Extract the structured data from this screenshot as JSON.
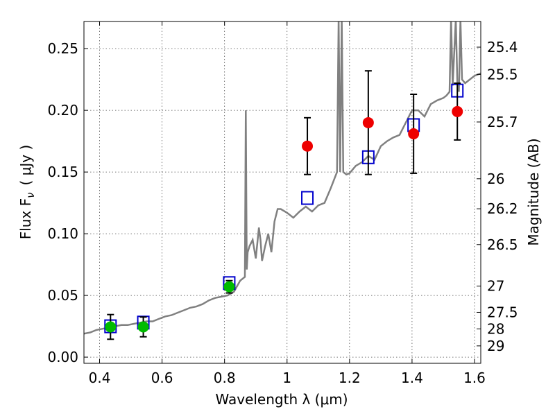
{
  "chart_data": {
    "type": "scatter",
    "xlabel": "Wavelength  λ (μm)",
    "ylabel": "Flux  F",
    "ylabel_sub": "ν",
    "ylabel_unit": "( μJy )",
    "y2label": "Magnitude (AB)",
    "xlim": [
      0.35,
      1.62
    ],
    "ylim": [
      -0.005,
      0.272
    ],
    "grid": true,
    "x_ticks": [
      0.4,
      0.6,
      0.8,
      1.0,
      1.2,
      1.4,
      1.6
    ],
    "x_tick_labels": [
      "0.4",
      "0.6",
      "0.8",
      "1",
      "1.2",
      "1.4",
      "1.6"
    ],
    "y_ticks": [
      0.0,
      0.05,
      0.1,
      0.15,
      0.2,
      0.25
    ],
    "y_tick_labels": [
      "0.00",
      "0.05",
      "0.10",
      "0.15",
      "0.20",
      "0.25"
    ],
    "mag_ticks": [
      25.4,
      25.5,
      25.7,
      26,
      26.2,
      26.5,
      27,
      27.5,
      28,
      29
    ],
    "mag_tick_labels": [
      "25.4",
      "25.5",
      "25.7",
      "26",
      "26.2",
      "26.5",
      "27",
      "27.5",
      "28",
      "29"
    ],
    "series": [
      {
        "kind": "line",
        "color": "#808080",
        "x": [
          0.35,
          0.37,
          0.39,
          0.41,
          0.43,
          0.45,
          0.47,
          0.49,
          0.51,
          0.53,
          0.55,
          0.57,
          0.59,
          0.61,
          0.63,
          0.65,
          0.67,
          0.69,
          0.71,
          0.73,
          0.75,
          0.77,
          0.79,
          0.81,
          0.83,
          0.85,
          0.865,
          0.868,
          0.871,
          0.874,
          0.88,
          0.89,
          0.9,
          0.91,
          0.915,
          0.92,
          0.93,
          0.94,
          0.95,
          0.96,
          0.97,
          0.98,
          1.0,
          1.02,
          1.04,
          1.06,
          1.08,
          1.1,
          1.12,
          1.14,
          1.16,
          1.165,
          1.17,
          1.175,
          1.18,
          1.19,
          1.2,
          1.22,
          1.24,
          1.26,
          1.28,
          1.3,
          1.32,
          1.34,
          1.36,
          1.38,
          1.4,
          1.42,
          1.44,
          1.46,
          1.48,
          1.5,
          1.51,
          1.52,
          1.525,
          1.53,
          1.54,
          1.545,
          1.55,
          1.555,
          1.56,
          1.57,
          1.58,
          1.6,
          1.62
        ],
        "y": [
          0.019,
          0.02,
          0.022,
          0.023,
          0.024,
          0.025,
          0.026,
          0.026,
          0.027,
          0.028,
          0.029,
          0.029,
          0.031,
          0.033,
          0.034,
          0.036,
          0.038,
          0.04,
          0.041,
          0.043,
          0.046,
          0.048,
          0.049,
          0.05,
          0.053,
          0.062,
          0.065,
          0.2,
          0.071,
          0.085,
          0.09,
          0.095,
          0.08,
          0.105,
          0.095,
          0.078,
          0.09,
          0.1,
          0.085,
          0.11,
          0.12,
          0.12,
          0.117,
          0.113,
          0.118,
          0.122,
          0.118,
          0.123,
          0.125,
          0.137,
          0.15,
          0.274,
          0.15,
          0.274,
          0.15,
          0.148,
          0.149,
          0.155,
          0.158,
          0.163,
          0.16,
          0.171,
          0.175,
          0.178,
          0.18,
          0.19,
          0.2,
          0.2,
          0.195,
          0.205,
          0.208,
          0.21,
          0.212,
          0.215,
          0.274,
          0.22,
          0.274,
          0.223,
          0.215,
          0.274,
          0.225,
          0.222,
          0.224,
          0.228,
          0.23
        ]
      },
      {
        "kind": "markers",
        "marker": "square",
        "color": "#0000cc",
        "x": [
          0.435,
          0.54,
          0.815,
          1.065,
          1.26,
          1.405,
          1.545
        ],
        "y": [
          0.025,
          0.028,
          0.06,
          0.129,
          0.162,
          0.188,
          0.216
        ]
      },
      {
        "kind": "markers",
        "marker": "circle",
        "color": "#00bb00",
        "x": [
          0.435,
          0.54,
          0.815
        ],
        "y": [
          0.0245,
          0.0245,
          0.057
        ],
        "err": [
          0.01,
          0.008,
          0.005
        ]
      },
      {
        "kind": "markers",
        "marker": "circle",
        "color": "#ee0000",
        "x": [
          1.065,
          1.26,
          1.405,
          1.545
        ],
        "y": [
          0.171,
          0.19,
          0.181,
          0.199
        ],
        "err": [
          0.023,
          0.042,
          0.032,
          0.023
        ]
      }
    ]
  }
}
